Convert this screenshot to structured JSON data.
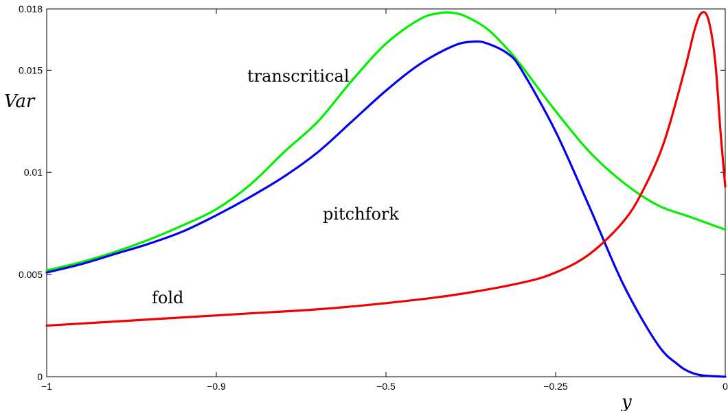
{
  "chart_data": {
    "type": "line",
    "xlabel": "y",
    "ylabel": "Var",
    "ylim": [
      0,
      0.018
    ],
    "x_ticks": [
      "−1",
      "−0.9",
      "−0.5",
      "−0.25",
      "0"
    ],
    "y_ticks": [
      {
        "value": 0,
        "label": "0"
      },
      {
        "value": 0.005,
        "label": "0.005"
      },
      {
        "value": 0.01,
        "label": "0.01"
      },
      {
        "value": 0.015,
        "label": "0.015"
      },
      {
        "value": 0.018,
        "label": "0.018"
      }
    ],
    "grid": false,
    "annotations": {
      "transcritical": "transcritical",
      "pitchfork": "pitchfork",
      "fold": "fold"
    },
    "series": [
      {
        "color": "#00ee00",
        "x": [
          0,
          0.05,
          0.1,
          0.15,
          0.2,
          0.25,
          0.3,
          0.35,
          0.4,
          0.45,
          0.5,
          0.55,
          0.58,
          0.6,
          0.62,
          0.65,
          0.68,
          0.7,
          0.75,
          0.8,
          0.85,
          0.9,
          0.95,
          1.0
        ],
        "y": [
          0.0052,
          0.0056,
          0.0061,
          0.0067,
          0.0074,
          0.0082,
          0.0094,
          0.011,
          0.0125,
          0.0145,
          0.0163,
          0.0175,
          0.0178,
          0.0178,
          0.0176,
          0.017,
          0.016,
          0.0152,
          0.013,
          0.011,
          0.0095,
          0.0084,
          0.0078,
          0.0072
        ]
      },
      {
        "color": "#0000ee",
        "x": [
          0,
          0.05,
          0.1,
          0.15,
          0.2,
          0.25,
          0.3,
          0.35,
          0.4,
          0.45,
          0.5,
          0.55,
          0.6,
          0.63,
          0.65,
          0.68,
          0.7,
          0.75,
          0.8,
          0.85,
          0.9,
          0.93,
          0.95,
          0.97,
          1.0
        ],
        "y": [
          0.0051,
          0.0055,
          0.006,
          0.0065,
          0.0071,
          0.0079,
          0.0088,
          0.0098,
          0.011,
          0.0125,
          0.014,
          0.0153,
          0.0162,
          0.0164,
          0.0163,
          0.0158,
          0.015,
          0.012,
          0.0083,
          0.0045,
          0.0016,
          0.0006,
          0.0002,
          5e-05,
          0
        ]
      },
      {
        "color": "#ee0000",
        "x": [
          0,
          0.1,
          0.2,
          0.3,
          0.4,
          0.5,
          0.6,
          0.7,
          0.75,
          0.8,
          0.85,
          0.88,
          0.91,
          0.94,
          0.955,
          0.965,
          0.975,
          0.985,
          0.993,
          1.0
        ],
        "y": [
          0.0025,
          0.0027,
          0.0029,
          0.0031,
          0.0033,
          0.0036,
          0.004,
          0.0046,
          0.0051,
          0.006,
          0.0076,
          0.0092,
          0.0115,
          0.015,
          0.017,
          0.0178,
          0.0175,
          0.0155,
          0.012,
          0.0093
        ]
      }
    ]
  }
}
